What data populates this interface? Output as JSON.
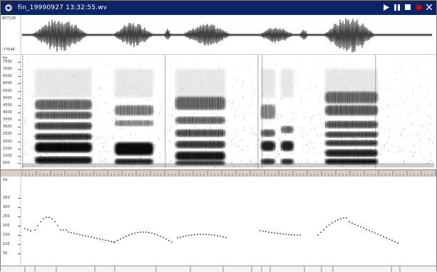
{
  "window": {
    "title": "fin_19990927 13:32:55.wv",
    "controls": [
      "play-icon",
      "pause-icon",
      "stop-icon",
      "record-icon",
      "close-icon"
    ]
  },
  "waveform": {
    "top_label": "807126",
    "bottom_label": "-77544"
  },
  "spectrogram": {
    "unit": "Hz",
    "ticks": [
      "7500",
      "7000",
      "6500",
      "6000",
      "5500",
      "5000",
      "4500",
      "4000",
      "3500",
      "3000",
      "2500",
      "2000",
      "1500",
      "1000",
      "500"
    ]
  },
  "pitch": {
    "unit": "Hz",
    "ticks": [
      "350",
      "300",
      "250",
      "200",
      "150",
      "100",
      "50"
    ]
  },
  "colors": {
    "title_bg": "#0a246a",
    "record": "#e00000"
  }
}
